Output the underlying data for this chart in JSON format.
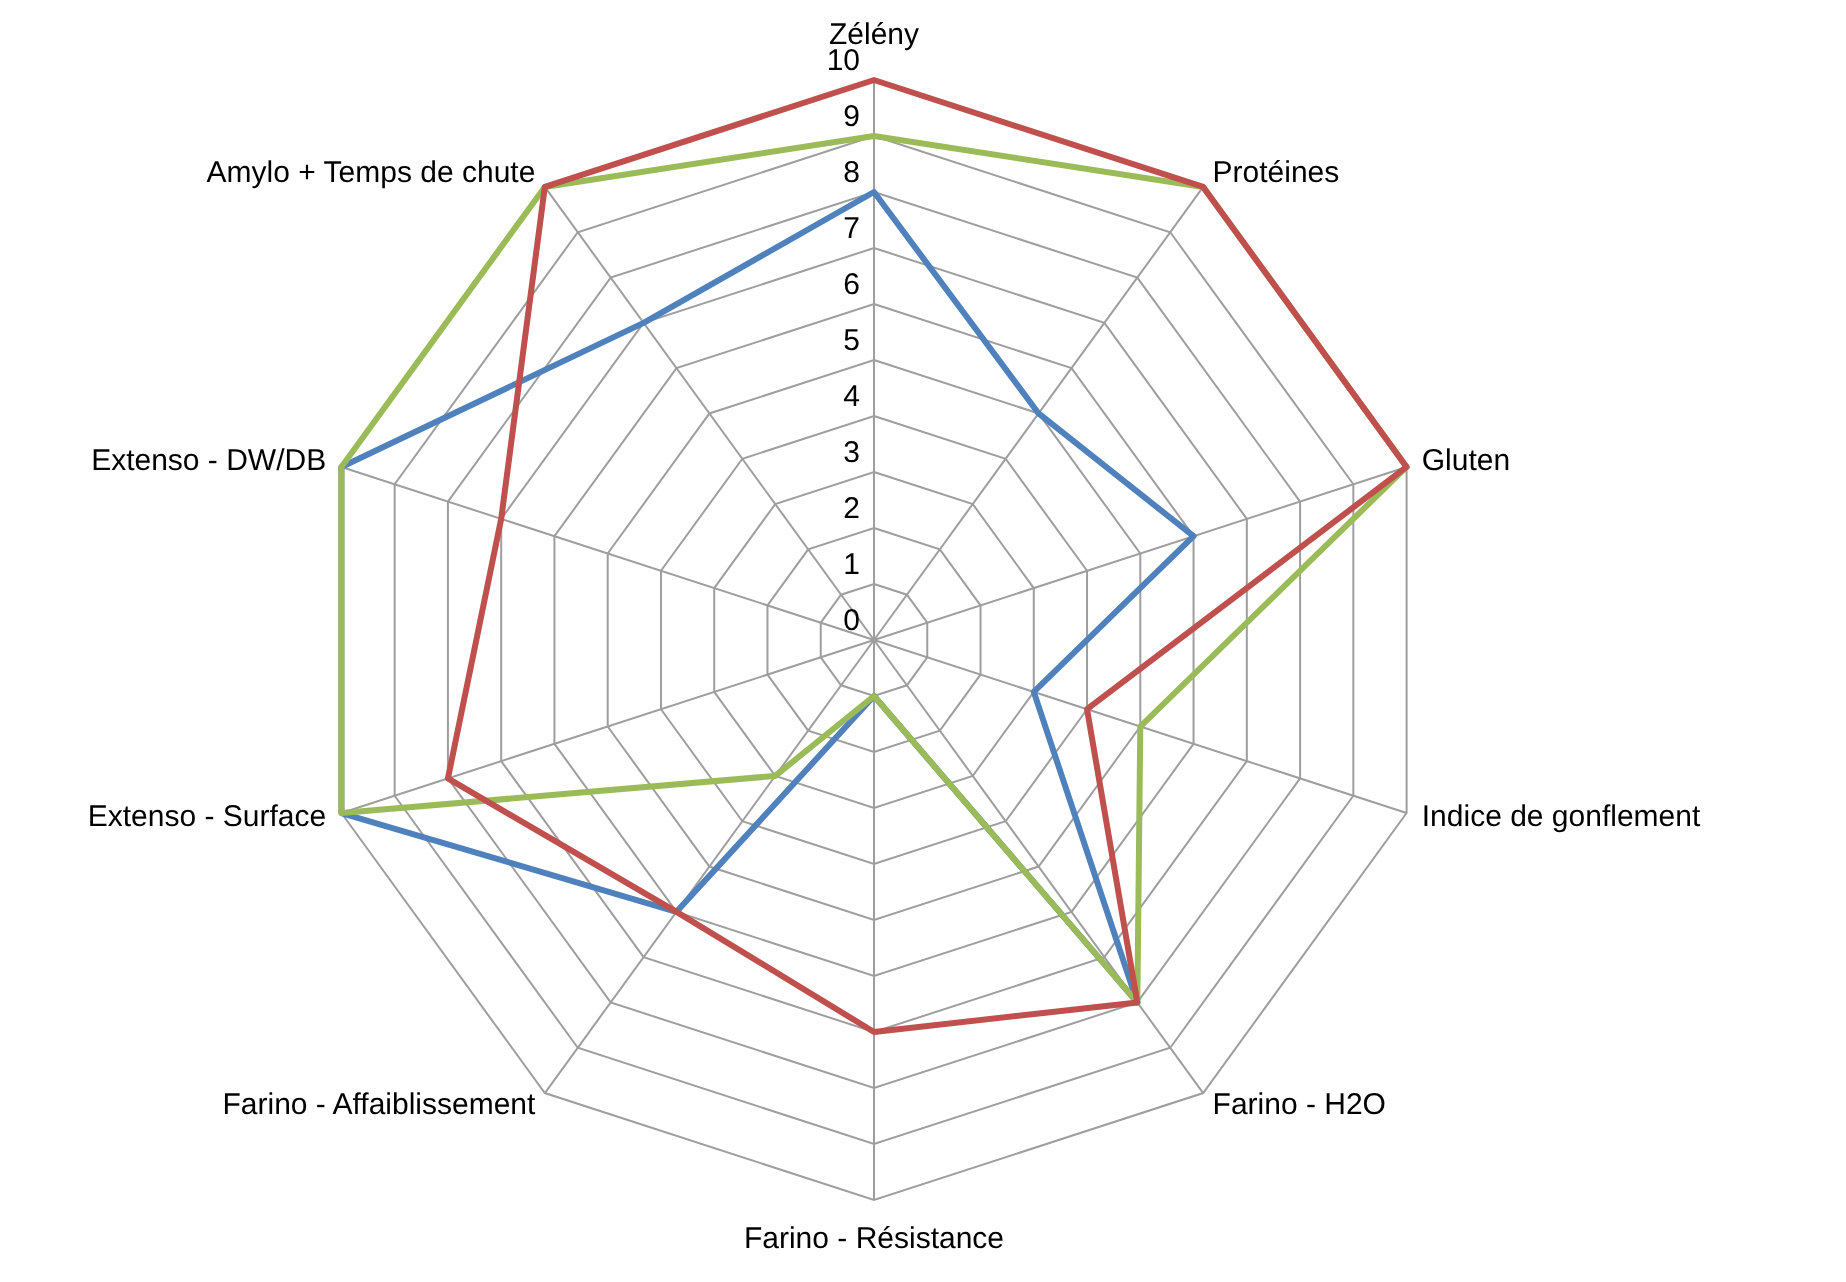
{
  "chart_data": {
    "type": "radar",
    "categories": [
      "Zélény",
      "Protéines",
      "Gluten",
      "Indice de gonflement",
      "Farino - H2O",
      "Farino - Résistance",
      "Farino - Affaiblissement",
      "Extenso - Surface",
      "Extenso - DW/DB",
      "Amylo + Temps de chute"
    ],
    "ylim": [
      0,
      10
    ],
    "yticks": [
      0,
      1,
      2,
      3,
      4,
      5,
      6,
      7,
      8,
      9,
      10
    ],
    "grid": true,
    "marker": "none",
    "series": [
      {
        "color": "#4f81bd",
        "values": [
          8,
          5,
          6,
          3,
          8,
          1,
          6,
          10,
          10,
          7
        ]
      },
      {
        "color": "#9bbb59",
        "values": [
          9,
          10,
          10,
          5,
          8,
          1,
          3,
          10,
          10,
          10
        ]
      },
      {
        "color": "#c0504d",
        "values": [
          10,
          10,
          10,
          4,
          8,
          7,
          6,
          8,
          7,
          10
        ]
      }
    ]
  }
}
